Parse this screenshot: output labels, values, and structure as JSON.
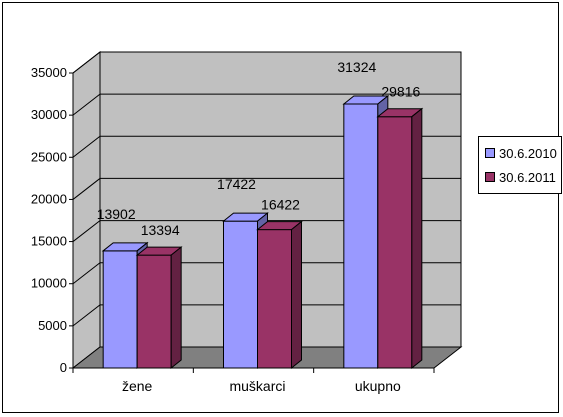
{
  "chart_data": {
    "type": "bar",
    "categories": [
      "žene",
      "muškarci",
      "ukupno"
    ],
    "series": [
      {
        "name": "30.6.2010",
        "values": [
          13902,
          17422,
          31324
        ],
        "color": "#9999ff"
      },
      {
        "name": "30.6.2011",
        "values": [
          13394,
          16422,
          29816
        ],
        "color": "#993366"
      }
    ],
    "ylim": [
      0,
      35000
    ],
    "yticks": [
      0,
      5000,
      10000,
      15000,
      20000,
      25000,
      30000,
      35000
    ],
    "title": "",
    "xlabel": "",
    "ylabel": "",
    "grid": true,
    "legend_position": "right",
    "style": "3d-clustered",
    "wall_color": "#c0c0c0",
    "floor_color": "#808080"
  }
}
